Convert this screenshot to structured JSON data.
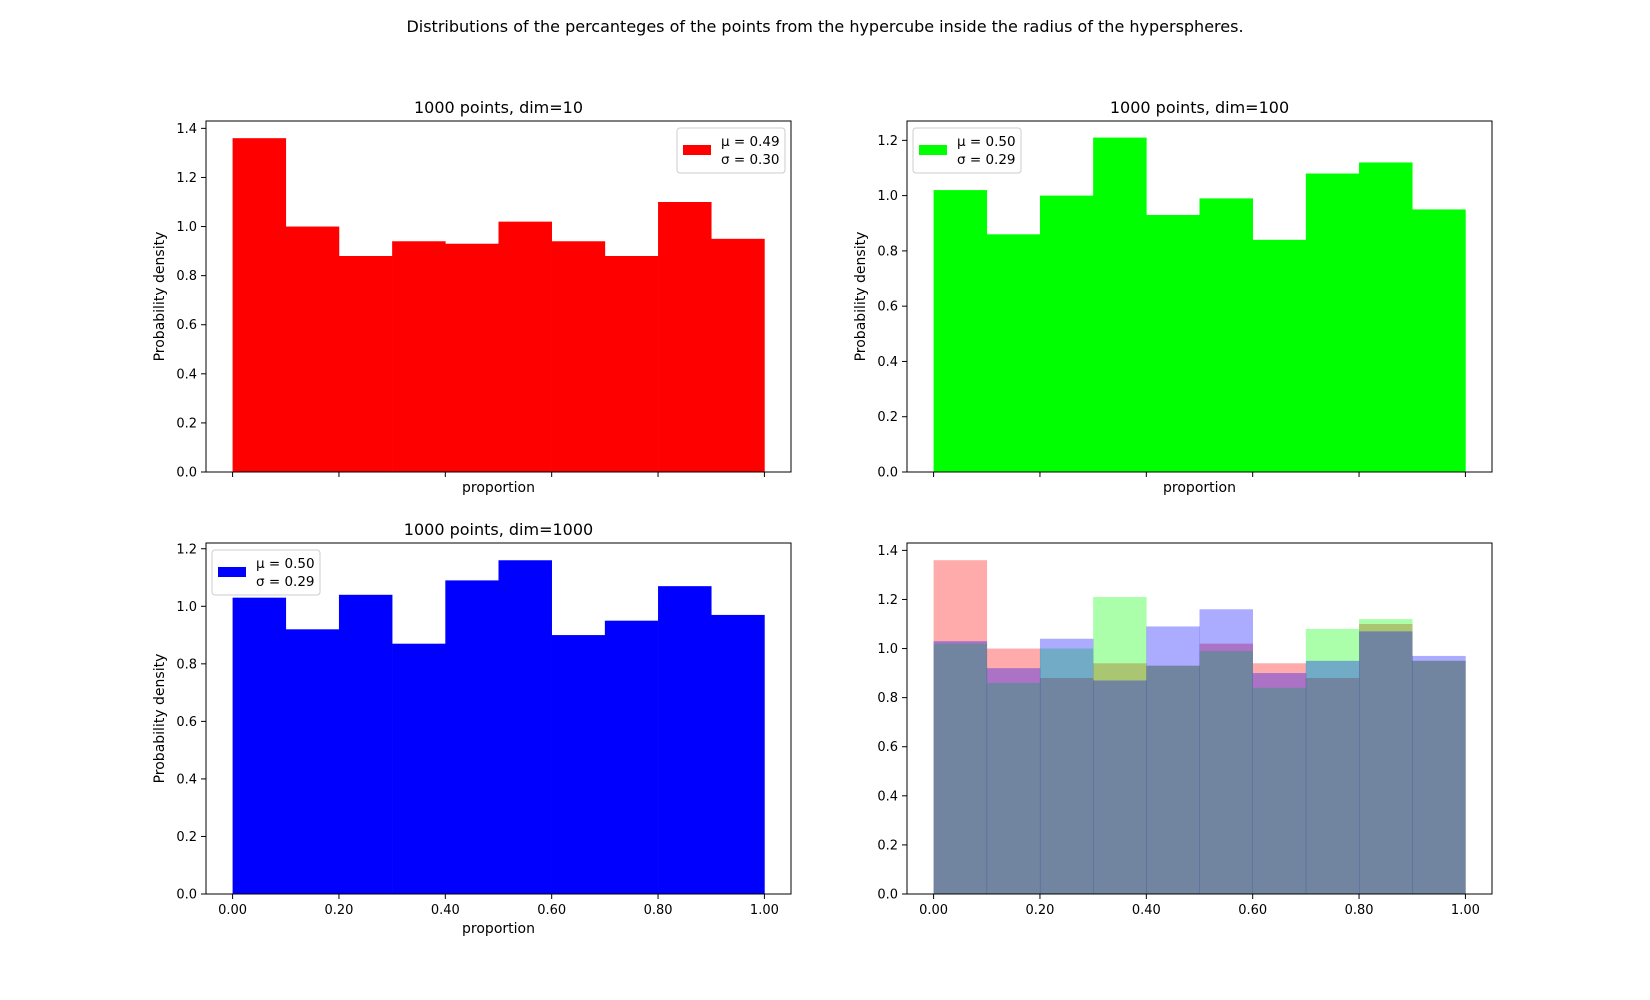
{
  "figure": {
    "title": "Distributions of the percanteges of the points from the hypercube inside the radius of the hyperspheres."
  },
  "chart_data": [
    {
      "type": "bar",
      "panel": "top-left",
      "title": "1000 points, dim=10",
      "xlabel": "proportion",
      "ylabel": "Probability density",
      "bin_edges": [
        0.0,
        0.1,
        0.2,
        0.3,
        0.4,
        0.5,
        0.6,
        0.7,
        0.8,
        0.9,
        1.0
      ],
      "xlim": [
        -0.05,
        1.05
      ],
      "ylim": [
        0,
        1.43
      ],
      "yticks": [
        "0.0",
        "0.2",
        "0.4",
        "0.6",
        "0.8",
        "1.0",
        "1.2",
        "1.4"
      ],
      "xticks": [],
      "series": [
        {
          "name": "dim=10",
          "color": "#ff0000",
          "opacity": 1,
          "values": [
            1.36,
            1.0,
            0.88,
            0.94,
            0.93,
            1.02,
            0.94,
            0.88,
            1.1,
            0.95
          ]
        }
      ],
      "legend": {
        "placement": "top-right",
        "color": "#ff0000",
        "line1": "μ = 0.49",
        "line2": "σ = 0.30"
      }
    },
    {
      "type": "bar",
      "panel": "top-right",
      "title": "1000 points, dim=100",
      "xlabel": "proportion",
      "ylabel": "Probability density",
      "bin_edges": [
        0.0,
        0.1,
        0.2,
        0.3,
        0.4,
        0.5,
        0.6,
        0.7,
        0.8,
        0.9,
        1.0
      ],
      "xlim": [
        -0.05,
        1.05
      ],
      "ylim": [
        0,
        1.27
      ],
      "yticks": [
        "0.0",
        "0.2",
        "0.4",
        "0.6",
        "0.8",
        "1.0",
        "1.2"
      ],
      "xticks": [],
      "series": [
        {
          "name": "dim=100",
          "color": "#00ff00",
          "opacity": 1,
          "values": [
            1.02,
            0.86,
            1.0,
            1.21,
            0.93,
            0.99,
            0.84,
            1.08,
            1.12,
            0.95
          ]
        }
      ],
      "legend": {
        "placement": "top-left",
        "color": "#00ff00",
        "line1": "μ = 0.50",
        "line2": "σ = 0.29"
      }
    },
    {
      "type": "bar",
      "panel": "bottom-left",
      "title": "1000 points, dim=1000",
      "xlabel": "proportion",
      "ylabel": "Probability density",
      "bin_edges": [
        0.0,
        0.1,
        0.2,
        0.3,
        0.4,
        0.5,
        0.6,
        0.7,
        0.8,
        0.9,
        1.0
      ],
      "xlim": [
        -0.05,
        1.05
      ],
      "ylim": [
        0,
        1.22
      ],
      "yticks": [
        "0.0",
        "0.2",
        "0.4",
        "0.6",
        "0.8",
        "1.0",
        "1.2"
      ],
      "xticks": [
        "0.00",
        "0.20",
        "0.40",
        "0.60",
        "0.80",
        "1.00"
      ],
      "series": [
        {
          "name": "dim=1000",
          "color": "#0000ff",
          "opacity": 1,
          "values": [
            1.03,
            0.92,
            1.04,
            0.87,
            1.09,
            1.16,
            0.9,
            0.95,
            1.07,
            0.97
          ]
        }
      ],
      "legend": {
        "placement": "top-left",
        "color": "#0000ff",
        "line1": "μ = 0.50",
        "line2": "σ = 0.29"
      }
    },
    {
      "type": "bar",
      "panel": "bottom-right",
      "title": "",
      "xlabel": "",
      "ylabel": "",
      "bin_edges": [
        0.0,
        0.1,
        0.2,
        0.3,
        0.4,
        0.5,
        0.6,
        0.7,
        0.8,
        0.9,
        1.0
      ],
      "xlim": [
        -0.05,
        1.05
      ],
      "ylim": [
        0,
        1.43
      ],
      "yticks": [
        "0.0",
        "0.2",
        "0.4",
        "0.6",
        "0.8",
        "1.0",
        "1.2",
        "1.4"
      ],
      "xticks": [
        "0.00",
        "0.20",
        "0.40",
        "0.60",
        "0.80",
        "1.00"
      ],
      "overlay": true,
      "series": [
        {
          "name": "dim=10",
          "color": "#ff0000",
          "opacity": 0.33,
          "values": [
            1.36,
            1.0,
            0.88,
            0.94,
            0.93,
            1.02,
            0.94,
            0.88,
            1.1,
            0.95
          ]
        },
        {
          "name": "dim=100",
          "color": "#00ff00",
          "opacity": 0.33,
          "values": [
            1.02,
            0.86,
            1.0,
            1.21,
            0.93,
            0.99,
            0.84,
            1.08,
            1.12,
            0.95
          ]
        },
        {
          "name": "dim=1000",
          "color": "#0000ff",
          "opacity": 0.33,
          "values": [
            1.03,
            0.92,
            1.04,
            0.87,
            1.09,
            1.16,
            0.9,
            0.95,
            1.07,
            0.97
          ]
        }
      ],
      "legend": null
    }
  ]
}
